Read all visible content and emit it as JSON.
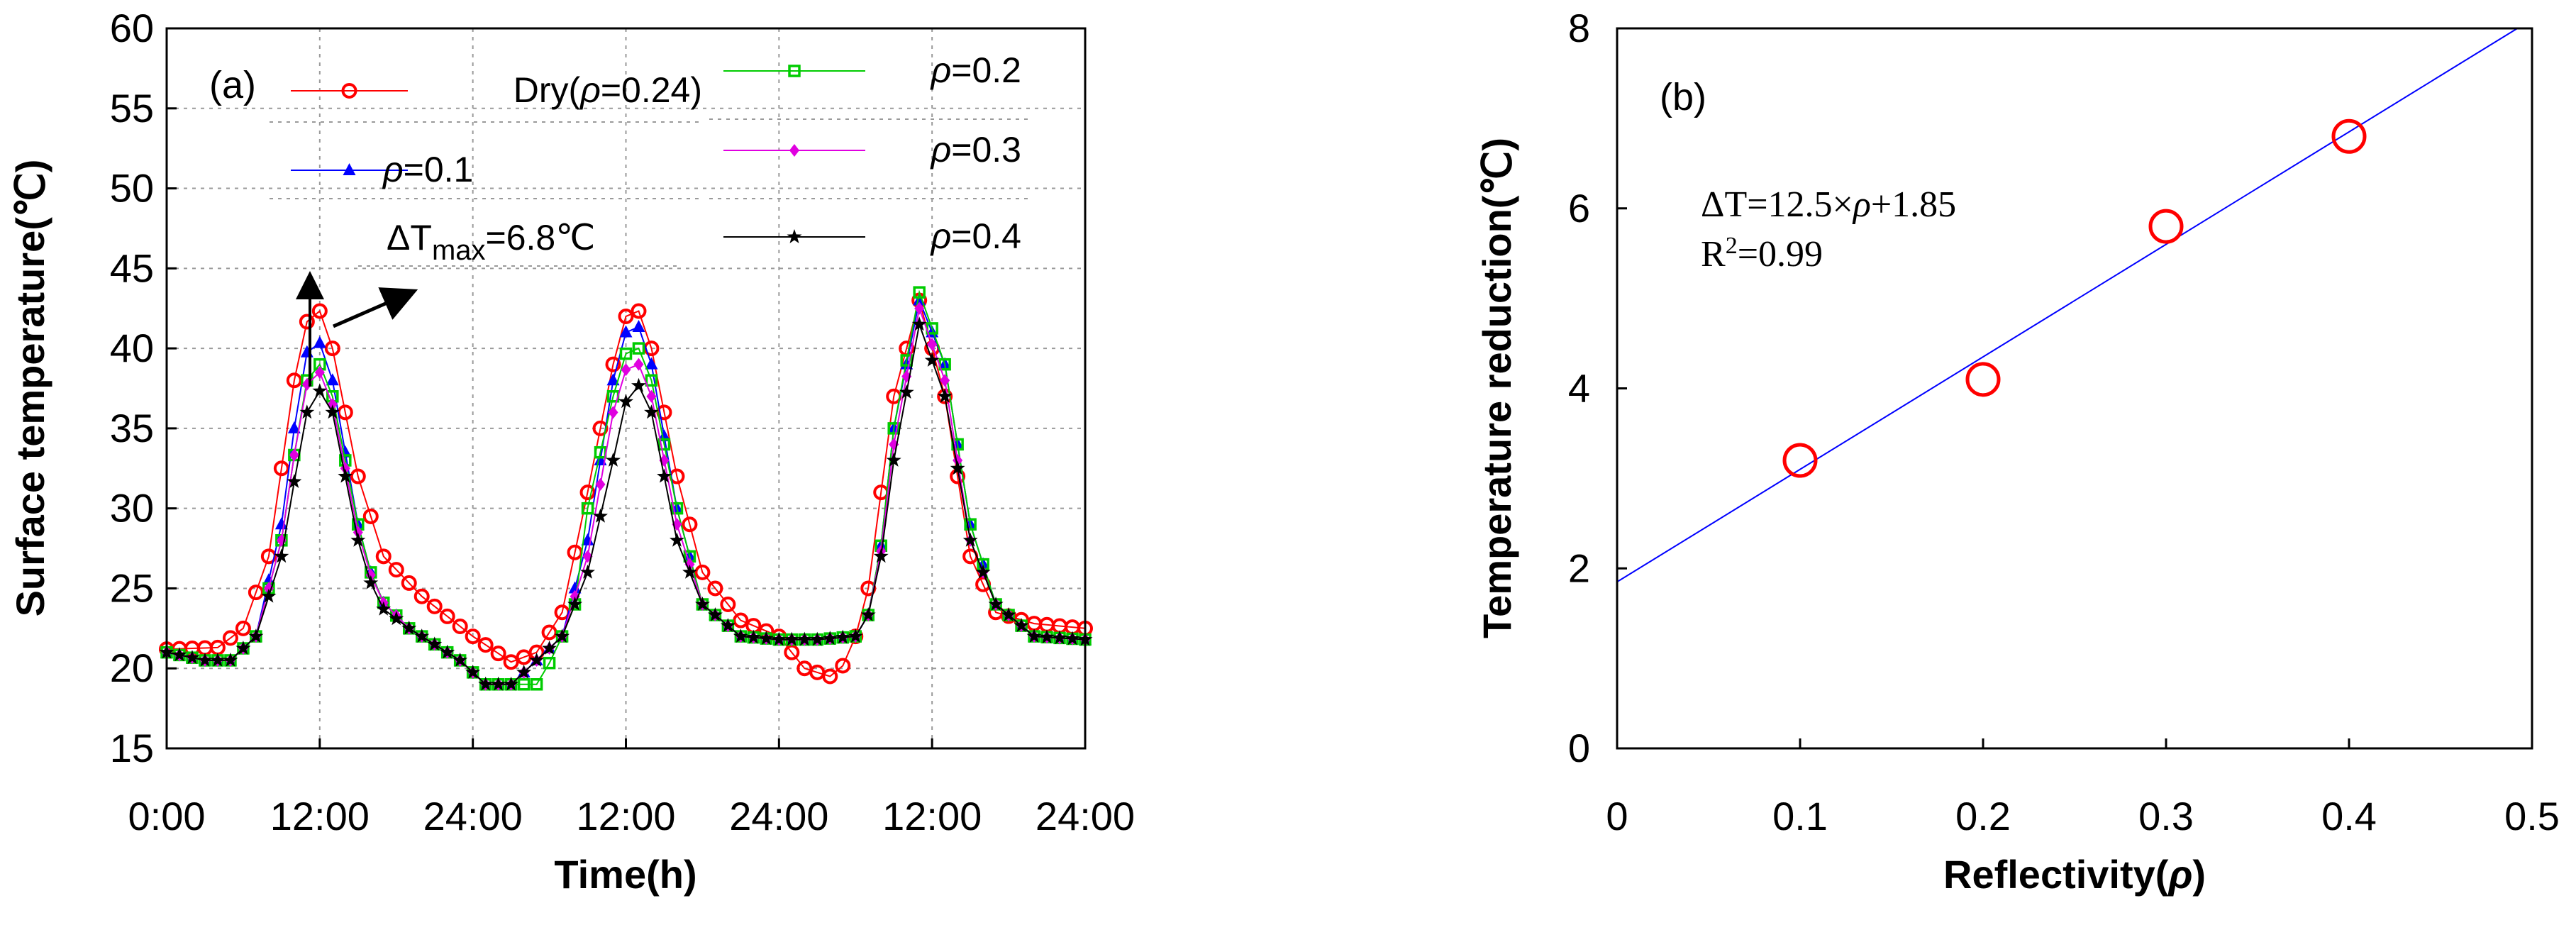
{
  "chart_data": [
    {
      "type": "line",
      "panel": "(a)",
      "xlabel": "Time(h)",
      "ylabel": "Surface temperature(℃)",
      "ylim": [
        15,
        60
      ],
      "xlim": [
        0,
        72
      ],
      "x_ticks": [
        0,
        12,
        24,
        36,
        48,
        60,
        72
      ],
      "x_tick_labels": [
        "0:00",
        "12:00",
        "24:00",
        "12:00",
        "24:00",
        "12:00",
        "24:00"
      ],
      "y_ticks": [
        15,
        20,
        25,
        30,
        35,
        40,
        45,
        50,
        55,
        60
      ],
      "y_tick_labels": [
        "15",
        "20",
        "25",
        "30",
        "35",
        "40",
        "45",
        "50",
        "55",
        "60"
      ],
      "grid": true,
      "annotation": {
        "text_prefix": "ΔT",
        "text_sub": "max",
        "text_suffix": "=6.8℃",
        "arrow_x": 11.5,
        "arrow_y_from": 38,
        "arrow_y_to": 44.5
      },
      "series": [
        {
          "name": "Dry(ρ=0.24)",
          "legend": {
            "pre": "Dry(",
            "rho": "ρ",
            "post": "=0.24)"
          },
          "color": "#ff0000",
          "marker": "circle",
          "knots": [
            [
              0,
              21.2
            ],
            [
              4,
              21.3
            ],
            [
              6,
              22.5
            ],
            [
              8,
              27
            ],
            [
              10,
              38
            ],
            [
              11.5,
              43.5
            ],
            [
              13,
              40
            ],
            [
              15,
              32
            ],
            [
              17,
              27
            ],
            [
              20,
              24.5
            ],
            [
              24,
              22
            ],
            [
              27,
              20.4
            ],
            [
              29,
              21
            ],
            [
              31,
              23.5
            ],
            [
              33,
              31
            ],
            [
              35,
              39
            ],
            [
              36.5,
              43.5
            ],
            [
              38,
              40
            ],
            [
              40,
              32
            ],
            [
              42,
              26
            ],
            [
              45,
              23
            ],
            [
              48,
              22
            ],
            [
              50,
              20
            ],
            [
              52,
              19.5
            ],
            [
              53.5,
              20.5
            ],
            [
              55,
              25
            ],
            [
              57,
              37
            ],
            [
              59,
              43
            ],
            [
              61,
              37
            ],
            [
              63,
              27
            ],
            [
              65,
              23.5
            ],
            [
              68,
              22.8
            ],
            [
              72,
              22.5
            ]
          ]
        },
        {
          "name": "ρ=0.1",
          "legend": {
            "pre": "",
            "rho": "ρ",
            "post": "=0.1"
          },
          "color": "#0000ff",
          "marker": "triangle",
          "knots": [
            [
              0,
              21
            ],
            [
              3,
              20.5
            ],
            [
              5,
              20.5
            ],
            [
              7,
              22
            ],
            [
              9,
              29
            ],
            [
              10.5,
              38
            ],
            [
              11.5,
              41.5
            ],
            [
              13,
              38
            ],
            [
              15,
              29
            ],
            [
              16.5,
              24.5
            ],
            [
              19,
              22.5
            ],
            [
              21,
              21.5
            ],
            [
              23,
              20.5
            ],
            [
              25,
              19
            ],
            [
              27,
              19
            ],
            [
              29,
              20.5
            ],
            [
              31,
              22
            ],
            [
              33,
              28
            ],
            [
              35,
              38
            ],
            [
              36.5,
              42.5
            ],
            [
              38,
              39
            ],
            [
              40,
              30
            ],
            [
              42,
              24
            ],
            [
              45,
              22
            ],
            [
              48,
              21.8
            ],
            [
              51,
              21.8
            ],
            [
              54,
              22
            ],
            [
              55.5,
              24
            ],
            [
              57,
              35
            ],
            [
              59,
              43
            ],
            [
              61,
              39
            ],
            [
              63,
              29
            ],
            [
              65,
              24
            ],
            [
              68,
              22
            ],
            [
              72,
              21.8
            ]
          ]
        },
        {
          "name": "ρ=0.2",
          "legend": {
            "pre": "",
            "rho": "ρ",
            "post": "=0.2"
          },
          "color": "#00cc00",
          "marker": "square",
          "knots": [
            [
              0,
              21
            ],
            [
              3,
              20.5
            ],
            [
              5,
              20.5
            ],
            [
              7,
              22
            ],
            [
              9,
              28
            ],
            [
              10.5,
              36
            ],
            [
              11.5,
              40
            ],
            [
              13,
              37
            ],
            [
              15,
              29
            ],
            [
              16.5,
              24.5
            ],
            [
              19,
              22.5
            ],
            [
              21,
              21.5
            ],
            [
              23,
              20.5
            ],
            [
              25,
              19
            ],
            [
              27,
              19
            ],
            [
              29,
              19
            ],
            [
              30.5,
              21
            ],
            [
              32,
              24
            ],
            [
              33,
              30
            ],
            [
              35,
              37
            ],
            [
              36.5,
              41
            ],
            [
              38,
              38
            ],
            [
              40,
              30
            ],
            [
              42,
              24
            ],
            [
              45,
              22
            ],
            [
              48,
              21.8
            ],
            [
              51,
              21.8
            ],
            [
              54,
              22
            ],
            [
              55.5,
              24
            ],
            [
              57,
              35
            ],
            [
              59,
              43.5
            ],
            [
              61,
              39
            ],
            [
              63,
              29
            ],
            [
              65,
              24
            ],
            [
              68,
              22
            ],
            [
              72,
              21.8
            ]
          ]
        },
        {
          "name": "ρ=0.3",
          "legend": {
            "pre": "",
            "rho": "ρ",
            "post": "=0.3"
          },
          "color": "#e000e0",
          "marker": "diamond",
          "knots": [
            [
              0,
              21
            ],
            [
              3,
              20.5
            ],
            [
              5,
              20.5
            ],
            [
              7,
              22
            ],
            [
              9,
              28
            ],
            [
              10.5,
              36
            ],
            [
              11.5,
              39.5
            ],
            [
              13,
              36.5
            ],
            [
              15,
              28.5
            ],
            [
              16.5,
              24.5
            ],
            [
              19,
              22.5
            ],
            [
              21,
              21.5
            ],
            [
              23,
              20.5
            ],
            [
              25,
              19
            ],
            [
              27,
              19
            ],
            [
              29,
              20.5
            ],
            [
              31,
              22
            ],
            [
              33,
              27
            ],
            [
              35,
              36
            ],
            [
              36.5,
              40
            ],
            [
              38,
              37
            ],
            [
              40,
              29
            ],
            [
              42,
              24
            ],
            [
              45,
              22
            ],
            [
              48,
              21.8
            ],
            [
              51,
              21.8
            ],
            [
              54,
              22
            ],
            [
              55.5,
              24
            ],
            [
              57,
              34
            ],
            [
              59,
              42.5
            ],
            [
              61,
              38
            ],
            [
              63,
              28
            ],
            [
              65,
              24
            ],
            [
              68,
              22
            ],
            [
              72,
              21.8
            ]
          ]
        },
        {
          "name": "ρ=0.4",
          "legend": {
            "pre": "",
            "rho": "ρ",
            "post": "=0.4"
          },
          "color": "#000000",
          "marker": "star",
          "knots": [
            [
              0,
              21
            ],
            [
              3,
              20.5
            ],
            [
              5,
              20.5
            ],
            [
              7,
              22
            ],
            [
              9,
              27
            ],
            [
              10.5,
              34
            ],
            [
              11.5,
              38
            ],
            [
              13,
              36
            ],
            [
              15,
              28
            ],
            [
              16.5,
              24
            ],
            [
              19,
              22.5
            ],
            [
              21,
              21.5
            ],
            [
              23,
              20.5
            ],
            [
              25,
              19
            ],
            [
              27,
              19
            ],
            [
              29,
              20.5
            ],
            [
              31,
              22
            ],
            [
              33,
              26
            ],
            [
              35,
              33
            ],
            [
              36.5,
              38.5
            ],
            [
              38,
              36
            ],
            [
              40,
              28
            ],
            [
              42,
              24
            ],
            [
              45,
              22
            ],
            [
              48,
              21.8
            ],
            [
              51,
              21.8
            ],
            [
              54,
              22
            ],
            [
              55.5,
              24
            ],
            [
              57,
              33
            ],
            [
              59,
              41.5
            ],
            [
              61,
              37
            ],
            [
              63,
              28
            ],
            [
              65,
              24
            ],
            [
              68,
              22
            ],
            [
              72,
              21.8
            ]
          ]
        }
      ]
    },
    {
      "type": "scatter",
      "panel": "(b)",
      "xlabel": "Reflectivity(ρ)",
      "xlabel_parts": {
        "pre": "Reflectivity(",
        "rho": "ρ",
        "post": ")"
      },
      "ylabel": "Temperature reduction(℃)",
      "xlim": [
        0,
        0.5
      ],
      "ylim": [
        0,
        8
      ],
      "x_ticks": [
        0,
        0.1,
        0.2,
        0.3,
        0.4,
        0.5
      ],
      "x_tick_labels": [
        "0",
        "0.1",
        "0.2",
        "0.3",
        "0.4",
        "0.5"
      ],
      "y_ticks": [
        0,
        2,
        4,
        6,
        8
      ],
      "y_tick_labels": [
        "0",
        "2",
        "4",
        "6",
        "8"
      ],
      "grid": false,
      "points": {
        "x": [
          0.1,
          0.2,
          0.3,
          0.4
        ],
        "y": [
          3.2,
          4.1,
          5.8,
          6.8
        ],
        "color": "#ff0000"
      },
      "fit": {
        "slope": 12.5,
        "intercept": 1.85,
        "color": "#0000ff"
      },
      "equation": {
        "pre": "ΔT=12.5×",
        "rho": "ρ",
        "post": "+1.85"
      },
      "r2": {
        "pre": "R",
        "sup": "2",
        "post": "=0.99"
      }
    }
  ]
}
